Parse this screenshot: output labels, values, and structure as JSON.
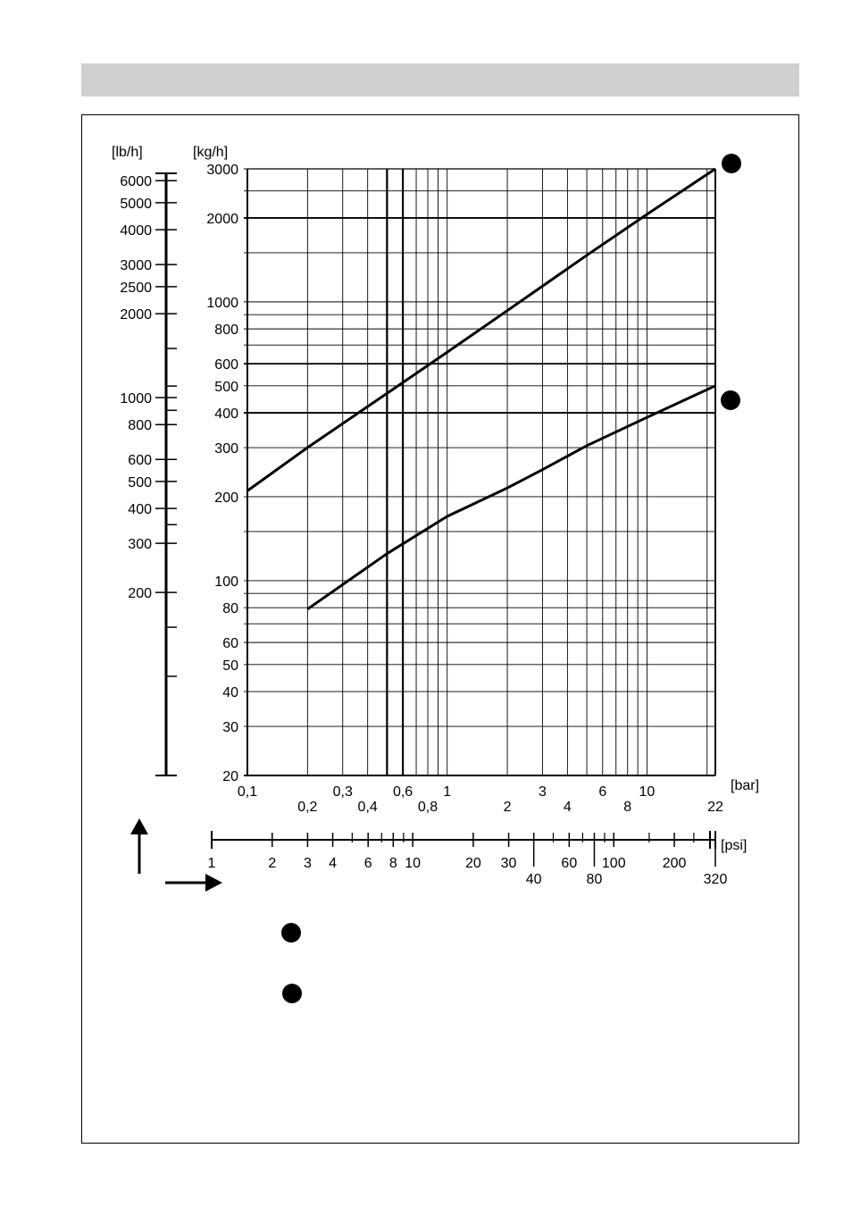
{
  "colors": {
    "header_band": "#d0d0d0",
    "ink": "#000000"
  },
  "icons": [
    "filled-circle-marker",
    "up-arrow-icon",
    "right-arrow-icon"
  ],
  "chart_data": {
    "type": "line",
    "x_scale": "log",
    "y_scale": "log",
    "grid": true,
    "units": {
      "y_left": "[lb/h]",
      "y_main": "[kg/h]",
      "x_main": "[bar]",
      "x_secondary": "[psi]"
    },
    "xlim": [
      0.1,
      22
    ],
    "ylim": [
      20,
      3000
    ],
    "x_ticks_upper": [
      "0,1",
      "0,3",
      "0,6",
      "1",
      "3",
      "6",
      "10"
    ],
    "x_ticks_lower": [
      "0,2",
      "0,4",
      "0,8",
      "2",
      "4",
      "8",
      "22"
    ],
    "y_ticks": [
      "3000",
      "2000",
      "1000",
      "800",
      "600",
      "500",
      "400",
      "300",
      "200",
      "100",
      "80",
      "60",
      "50",
      "40",
      "30",
      "20"
    ],
    "lbh_ticks": [
      "6000",
      "5000",
      "4000",
      "3000",
      "2500",
      "2000",
      "1000",
      "800",
      "600",
      "500",
      "400",
      "300",
      "200"
    ],
    "psi_ticks_upper": [
      "1",
      "2",
      "3",
      "4",
      "6",
      "8",
      "10",
      "20",
      "30",
      "60",
      "100",
      "200"
    ],
    "psi_ticks_lower": [
      "40",
      "80",
      "320"
    ],
    "series": [
      {
        "x": [
          0.1,
          0.2,
          0.5,
          1,
          2,
          5,
          10,
          22
        ],
        "y": [
          210,
          300,
          470,
          660,
          930,
          1470,
          2060,
          3000
        ]
      },
      {
        "x": [
          0.2,
          0.5,
          1,
          2,
          3,
          5,
          10,
          22
        ],
        "y": [
          79,
          125,
          170,
          215,
          250,
          305,
          385,
          500
        ]
      }
    ]
  }
}
